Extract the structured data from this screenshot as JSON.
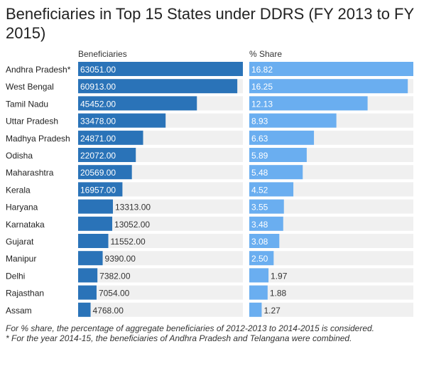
{
  "title": "Beneficiaries in Top 15 States under DDRS (FY 2013 to FY 2015)",
  "chart_data": {
    "type": "bar",
    "orientation": "horizontal",
    "categories": [
      "Andhra Pradesh*",
      "West Bengal",
      "Tamil Nadu",
      "Uttar Pradesh",
      "Madhya Pradesh",
      "Odisha",
      "Maharashtra",
      "Kerala",
      "Haryana",
      "Karnataka",
      "Gujarat",
      "Manipur",
      "Delhi",
      "Rajasthan",
      "Assam"
    ],
    "series": [
      {
        "name": "Beneficiaries",
        "values": [
          63051,
          60913,
          45452,
          33478,
          24871,
          22072,
          20569,
          16957,
          13313,
          13052,
          11552,
          9390,
          7382,
          7054,
          4768
        ],
        "labels": [
          "63051.00",
          "60913.00",
          "45452.00",
          "33478.00",
          "24871.00",
          "22072.00",
          "20569.00",
          "16957.00",
          "13313.00",
          "13052.00",
          "11552.00",
          "9390.00",
          "7382.00",
          "7054.00",
          "4768.00"
        ],
        "xlim": [
          0,
          63051
        ],
        "color": "#2a73b8"
      },
      {
        "name": "% Share",
        "values": [
          16.82,
          16.25,
          12.13,
          8.93,
          6.63,
          5.89,
          5.48,
          4.52,
          3.55,
          3.48,
          3.08,
          2.5,
          1.97,
          1.88,
          1.27
        ],
        "labels": [
          "16.82",
          "16.25",
          "12.13",
          "8.93",
          "6.63",
          "5.89",
          "5.48",
          "4.52",
          "3.55",
          "3.48",
          "3.08",
          "2.50",
          "1.97",
          "1.88",
          "1.27"
        ],
        "xlim": [
          0,
          16.82
        ],
        "color": "#6aaef0"
      }
    ],
    "track_color": "#f0f0f0"
  },
  "footnotes": [
    "For % share, the percentage of aggregate beneficiaries of 2012-2013 to 2014-2015 is considered.",
    "* For the year 2014-15, the beneficiaries of Andhra Pradesh and Telangana were combined."
  ]
}
